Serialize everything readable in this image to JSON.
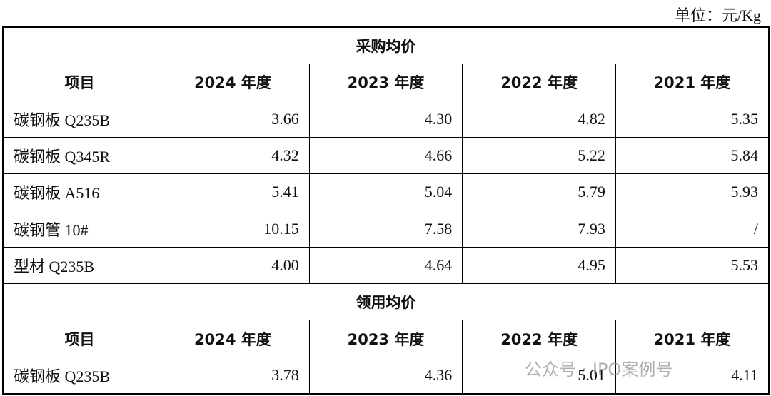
{
  "unit": "单位：元/Kg",
  "sections": [
    {
      "title": "采购均价",
      "header": [
        "项目",
        "2024 年度",
        "2023 年度",
        "2022 年度",
        "2021 年度"
      ],
      "rows": [
        [
          "碳钢板 Q235B",
          "3.66",
          "4.30",
          "4.82",
          "5.35"
        ],
        [
          "碳钢板 Q345R",
          "4.32",
          "4.66",
          "5.22",
          "5.84"
        ],
        [
          "碳钢板 A516",
          "5.41",
          "5.04",
          "5.79",
          "5.93"
        ],
        [
          "碳钢管 10#",
          "10.15",
          "7.58",
          "7.93",
          "/"
        ],
        [
          "型材 Q235B",
          "4.00",
          "4.64",
          "4.95",
          "5.53"
        ]
      ]
    },
    {
      "title": "领用均价",
      "header": [
        "项目",
        "2024 年度",
        "2023 年度",
        "2022 年度",
        "2021 年度"
      ],
      "rows": [
        [
          "碳钢板 Q235B",
          "3.78",
          "4.36",
          "5.01",
          "4.11"
        ]
      ]
    }
  ],
  "watermark": "公众号 · IPO案例号"
}
